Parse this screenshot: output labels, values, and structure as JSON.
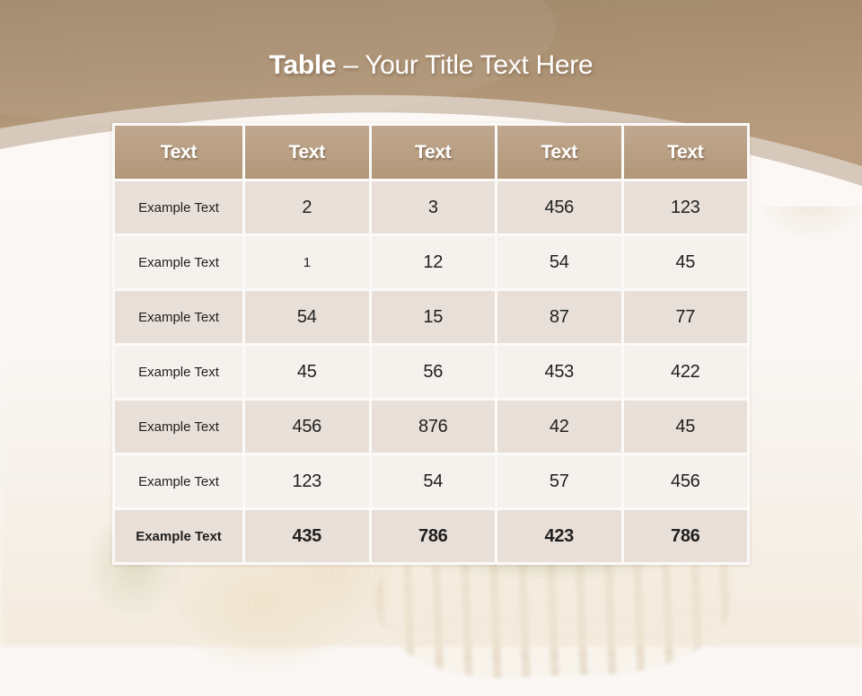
{
  "title": {
    "prefix": "Table",
    "separator": " – ",
    "text": "Your Title Text Here"
  },
  "table": {
    "headers": [
      "Text",
      "Text",
      "Text",
      "Text",
      "Text"
    ],
    "rows": [
      {
        "label": "Example Text",
        "values": [
          "2",
          "3",
          "456",
          "123"
        ],
        "emphasis": false
      },
      {
        "label": "Example Text",
        "values": [
          "1",
          "12",
          "54",
          "45"
        ],
        "emphasis": false
      },
      {
        "label": "Example Text",
        "values": [
          "54",
          "15",
          "87",
          "77"
        ],
        "emphasis": false
      },
      {
        "label": "Example Text",
        "values": [
          "45",
          "56",
          "453",
          "422"
        ],
        "emphasis": false
      },
      {
        "label": "Example Text",
        "values": [
          "456",
          "876",
          "42",
          "45"
        ],
        "emphasis": false
      },
      {
        "label": "Example Text",
        "values": [
          "123",
          "54",
          "57",
          "456"
        ],
        "emphasis": false
      },
      {
        "label": "Example Text",
        "values": [
          "435",
          "786",
          "423",
          "786"
        ],
        "emphasis": true
      }
    ]
  },
  "colors": {
    "page_bg": "#faf7f4",
    "banner_top": "#a0886a",
    "banner_bottom": "#b89c7d",
    "arc_band": "#d6c8ba",
    "arc_white": "#fbf8f5",
    "header_bg": "#b29879",
    "header_bg_light": "#c0a78f",
    "row_odd": "#e8dfd8",
    "row_even": "#f5f1ed",
    "grid_line": "#fbfaf8",
    "title_text": "#ffffff",
    "cell_text": "#1f1f1f"
  }
}
